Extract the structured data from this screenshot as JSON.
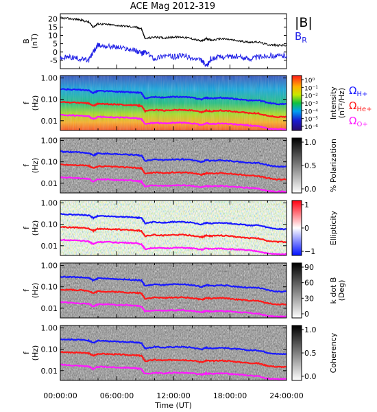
{
  "title": "ACE Mag 2012-319",
  "colors": {
    "b_total": "#000000",
    "b_radial": "#1f1fe6",
    "omega_h": "#1a1aff",
    "omega_he": "#ff1a1a",
    "omega_o": "#ff1aff"
  },
  "legend_top": {
    "b_total": "|B|",
    "b_radial": "B",
    "b_radial_sub": "R"
  },
  "legend_omega": {
    "h": "Ω",
    "h_sub": "H+",
    "he": "Ω",
    "he_sub": "He+",
    "o": "Ω",
    "o_sub": "O+"
  },
  "x_axis": {
    "label": "Time (UT)",
    "ticks": [
      "00:00:00",
      "06:00:00",
      "12:00:00",
      "18:00:00",
      "24:00:00"
    ]
  },
  "chart_data": [
    {
      "type": "line",
      "panel": "magnetic-field",
      "ylabel": "B",
      "yunit": "(nT)",
      "ylim": [
        -10,
        23
      ],
      "yticks": [
        -5,
        0,
        5,
        10,
        15,
        20
      ],
      "x_hours": [
        0,
        1,
        2,
        3,
        3.5,
        4,
        5,
        6,
        7,
        8,
        8.6,
        9,
        10,
        11,
        12,
        13,
        14,
        15,
        15.5,
        16,
        17,
        18,
        19,
        20,
        21,
        22,
        23,
        24
      ],
      "series": [
        {
          "name": "|B|",
          "values": [
            20.5,
            20,
            19.5,
            18,
            15,
            17,
            16.5,
            16,
            15.5,
            15,
            14,
            8,
            9,
            8.5,
            9,
            9,
            8,
            6.5,
            8,
            7,
            8,
            7.5,
            6.5,
            6,
            6,
            4.5,
            4,
            4
          ]
        },
        {
          "name": "B_R",
          "values": [
            -4,
            -3,
            -4,
            -5,
            0,
            4,
            3.5,
            3,
            2,
            1,
            -1,
            0,
            -4,
            -2,
            -3,
            -2,
            -4,
            -5,
            -9,
            -4,
            -3,
            -2.5,
            -3,
            -4,
            -3,
            -2,
            -2.5,
            -2
          ]
        }
      ]
    },
    {
      "type": "heatmap",
      "panel": "power-spectrum",
      "ylabel": "f",
      "yunit": "(Hz)",
      "yticks": [
        "1.00",
        "0.10",
        "0.01"
      ],
      "colorbar": {
        "label": "Intensity",
        "unit": "(nT²/Hz)",
        "ticks": [
          "10⁰",
          "10⁻¹",
          "10⁻²",
          "10⁻³",
          "10⁻⁴",
          "10⁻⁵",
          "10⁻⁶"
        ]
      }
    },
    {
      "type": "heatmap",
      "panel": "polarization",
      "ylabel": "f",
      "yunit": "(Hz)",
      "yticks": [
        "1.00",
        "0.10",
        "0.01"
      ],
      "colorbar": {
        "label": "% Polarization",
        "unit": "",
        "ticks": [
          "1.0",
          "0.5",
          "0.0"
        ]
      }
    },
    {
      "type": "heatmap",
      "panel": "ellipticity",
      "ylabel": "f",
      "yunit": "(Hz)",
      "yticks": [
        "1.00",
        "0.10",
        "0.01"
      ],
      "colorbar": {
        "label": "Ellipticity",
        "unit": "",
        "ticks": [
          "1",
          "0",
          "−1"
        ]
      }
    },
    {
      "type": "heatmap",
      "panel": "k-dot-b",
      "ylabel": "f",
      "yunit": "(Hz)",
      "yticks": [
        "1.00",
        "0.10",
        "0.01"
      ],
      "colorbar": {
        "label": "k dot B",
        "unit": "(Deg)",
        "ticks": [
          "90",
          "60",
          "30",
          "0"
        ]
      }
    },
    {
      "type": "heatmap",
      "panel": "coherency",
      "ylabel": "f",
      "yunit": "(Hz)",
      "yticks": [
        "1.00",
        "0.10",
        "0.01"
      ],
      "colorbar": {
        "label": "Coherency",
        "unit": "",
        "ticks": [
          "1.0",
          "0.5",
          "0.0"
        ]
      }
    }
  ],
  "gyrofrequency_lines": {
    "x_hours": [
      0,
      1,
      2,
      3,
      3.5,
      4,
      5,
      6,
      7,
      8,
      8.6,
      9,
      10,
      11,
      12,
      13,
      14,
      15,
      15.5,
      16,
      17,
      18,
      19,
      20,
      21,
      22,
      23,
      24
    ],
    "h_hz": [
      0.3,
      0.29,
      0.28,
      0.26,
      0.2,
      0.25,
      0.24,
      0.23,
      0.22,
      0.21,
      0.2,
      0.11,
      0.13,
      0.12,
      0.13,
      0.13,
      0.12,
      0.1,
      0.12,
      0.11,
      0.12,
      0.11,
      0.1,
      0.09,
      0.09,
      0.07,
      0.06,
      0.06
    ],
    "he_hz": [
      0.075,
      0.072,
      0.07,
      0.065,
      0.05,
      0.062,
      0.06,
      0.058,
      0.055,
      0.052,
      0.05,
      0.028,
      0.032,
      0.03,
      0.032,
      0.032,
      0.03,
      0.025,
      0.03,
      0.028,
      0.03,
      0.028,
      0.025,
      0.023,
      0.022,
      0.017,
      0.015,
      0.015
    ],
    "o_hz": [
      0.019,
      0.018,
      0.017,
      0.016,
      0.012,
      0.015,
      0.015,
      0.014,
      0.014,
      0.013,
      0.012,
      0.007,
      0.008,
      0.0075,
      0.008,
      0.008,
      0.0075,
      0.0065,
      0.0075,
      0.007,
      0.0075,
      0.007,
      0.0065,
      0.006,
      0.0055,
      0.0043,
      0.004,
      0.004
    ]
  }
}
